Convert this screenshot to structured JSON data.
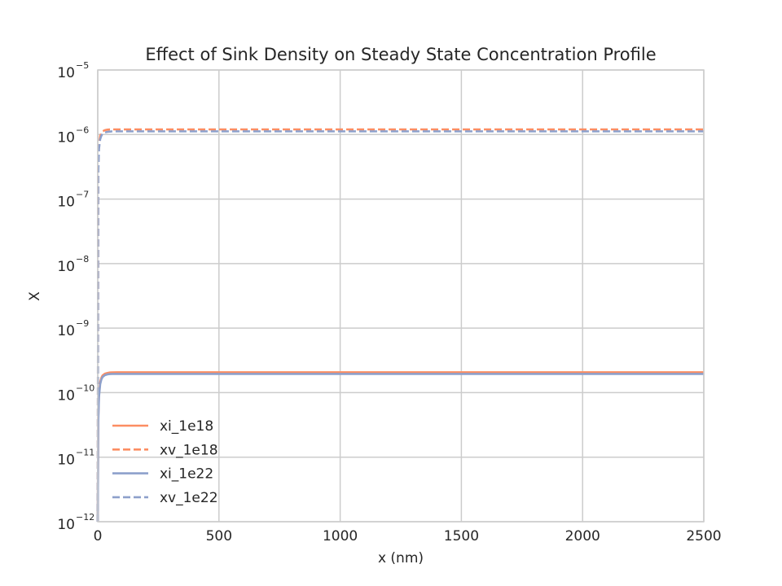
{
  "chart_data": {
    "type": "line",
    "title": "Effect of Sink Density on Steady State Concentration Profile",
    "xlabel": "x (nm)",
    "ylabel": "X",
    "xlim": [
      0,
      2500
    ],
    "ylim": [
      1e-12,
      1e-05
    ],
    "yscale": "log",
    "grid": true,
    "legend_position": "lower-left",
    "x_ticks": [
      {
        "value": 0,
        "label": "0"
      },
      {
        "value": 500,
        "label": "500"
      },
      {
        "value": 1000,
        "label": "1000"
      },
      {
        "value": 1500,
        "label": "1500"
      },
      {
        "value": 2000,
        "label": "2000"
      },
      {
        "value": 2500,
        "label": "2500"
      }
    ],
    "y_ticks": [
      {
        "value": 1e-12,
        "base": "10",
        "exp": "−12"
      },
      {
        "value": 1e-11,
        "base": "10",
        "exp": "−11"
      },
      {
        "value": 1e-10,
        "base": "10",
        "exp": "−10"
      },
      {
        "value": 1e-09,
        "base": "10",
        "exp": "−9"
      },
      {
        "value": 1e-08,
        "base": "10",
        "exp": "−8"
      },
      {
        "value": 1e-07,
        "base": "10",
        "exp": "−7"
      },
      {
        "value": 1e-06,
        "base": "10",
        "exp": "−6"
      },
      {
        "value": 1e-05,
        "base": "10",
        "exp": "−5"
      }
    ],
    "series": [
      {
        "name": "xi_1e18",
        "color": "#fc8d62",
        "dash": "solid",
        "x": [
          0,
          2,
          5,
          10,
          15,
          20,
          30,
          40,
          50,
          60,
          80,
          100,
          200,
          500,
          1000,
          1500,
          2000,
          2500
        ],
        "y": [
          1e-12,
          4e-11,
          9.5e-11,
          1.45e-10,
          1.7e-10,
          1.85e-10,
          1.97e-10,
          2.02e-10,
          2.05e-10,
          2.06e-10,
          2.07e-10,
          2.07e-10,
          2.07e-10,
          2.07e-10,
          2.07e-10,
          2.07e-10,
          2.07e-10,
          2.07e-10
        ]
      },
      {
        "name": "xv_1e18",
        "color": "#fc8d62",
        "dash": "dashed",
        "x": [
          0,
          2,
          5,
          10,
          15,
          20,
          30,
          40,
          50,
          60,
          80,
          100,
          200,
          500,
          1000,
          1500,
          2000,
          2500
        ],
        "y": [
          1e-12,
          3e-07,
          7e-07,
          9.5e-07,
          1.05e-06,
          1.12e-06,
          1.17e-06,
          1.19e-06,
          1.2e-06,
          1.2e-06,
          1.2e-06,
          1.2e-06,
          1.2e-06,
          1.2e-06,
          1.2e-06,
          1.2e-06,
          1.2e-06,
          1.2e-06
        ]
      },
      {
        "name": "xi_1e22",
        "color": "#8da0cb",
        "dash": "solid",
        "x": [
          0,
          2,
          5,
          10,
          15,
          20,
          30,
          40,
          50,
          60,
          80,
          100,
          200,
          500,
          1000,
          1500,
          2000,
          2500
        ],
        "y": [
          1e-12,
          3.5e-11,
          8.5e-11,
          1.35e-10,
          1.6e-10,
          1.75e-10,
          1.87e-10,
          1.92e-10,
          1.94e-10,
          1.95e-10,
          1.95e-10,
          1.95e-10,
          1.95e-10,
          1.95e-10,
          1.95e-10,
          1.95e-10,
          1.95e-10,
          1.95e-10
        ]
      },
      {
        "name": "xv_1e22",
        "color": "#8da0cb",
        "dash": "dashed",
        "x": [
          0,
          2,
          5,
          10,
          15,
          20,
          30,
          40,
          50,
          60,
          80,
          100,
          200,
          500,
          1000,
          1500,
          2000,
          2500
        ],
        "y": [
          1e-12,
          2.5e-07,
          6e-07,
          8.5e-07,
          9.6e-07,
          1.03e-06,
          1.08e-06,
          1.1e-06,
          1.11e-06,
          1.12e-06,
          1.12e-06,
          1.12e-06,
          1.12e-06,
          1.12e-06,
          1.12e-06,
          1.12e-06,
          1.12e-06,
          1.12e-06
        ]
      }
    ]
  }
}
